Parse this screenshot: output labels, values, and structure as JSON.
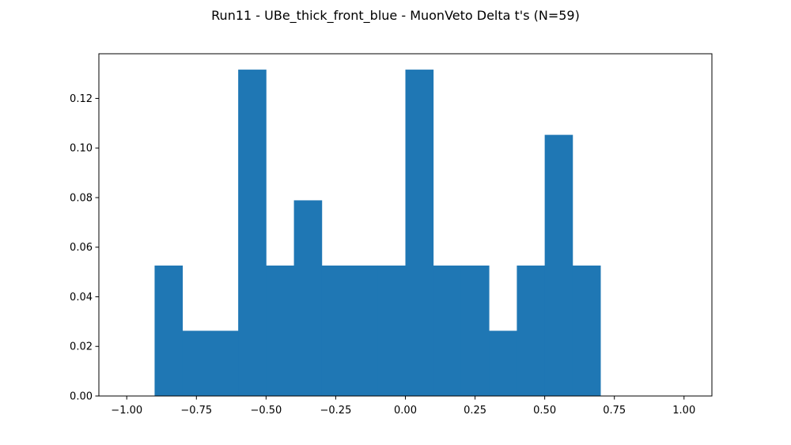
{
  "chart_data": {
    "type": "bar",
    "title": "Run11 - UBe_thick_front_blue - MuonVeto Delta t's (N=59)",
    "xlabel": "",
    "ylabel": "",
    "xlim": [
      -1.1,
      1.1
    ],
    "ylim": [
      0,
      0.138
    ],
    "xticks": [
      -1.0,
      -0.75,
      -0.5,
      -0.25,
      0.0,
      0.25,
      0.5,
      0.75,
      1.0
    ],
    "xtick_labels": [
      "−1.00",
      "−0.75",
      "−0.50",
      "−0.25",
      "0.00",
      "0.25",
      "0.50",
      "0.75",
      "1.00"
    ],
    "yticks": [
      0.0,
      0.02,
      0.04,
      0.06,
      0.08,
      0.1,
      0.12
    ],
    "ytick_labels": [
      "0.00",
      "0.02",
      "0.04",
      "0.06",
      "0.08",
      "0.10",
      "0.12"
    ],
    "bins": [
      {
        "x0": -0.9,
        "x1": -0.8,
        "value": 0.0526
      },
      {
        "x0": -0.8,
        "x1": -0.7,
        "value": 0.0263
      },
      {
        "x0": -0.7,
        "x1": -0.6,
        "value": 0.0263
      },
      {
        "x0": -0.6,
        "x1": -0.5,
        "value": 0.1316
      },
      {
        "x0": -0.5,
        "x1": -0.4,
        "value": 0.0526
      },
      {
        "x0": -0.4,
        "x1": -0.3,
        "value": 0.0789
      },
      {
        "x0": -0.3,
        "x1": -0.2,
        "value": 0.0526
      },
      {
        "x0": -0.2,
        "x1": -0.1,
        "value": 0.0526
      },
      {
        "x0": -0.1,
        "x1": 0.0,
        "value": 0.0526
      },
      {
        "x0": 0.0,
        "x1": 0.1,
        "value": 0.1316
      },
      {
        "x0": 0.1,
        "x1": 0.2,
        "value": 0.0526
      },
      {
        "x0": 0.2,
        "x1": 0.3,
        "value": 0.0526
      },
      {
        "x0": 0.3,
        "x1": 0.4,
        "value": 0.0263
      },
      {
        "x0": 0.4,
        "x1": 0.5,
        "value": 0.0526
      },
      {
        "x0": 0.5,
        "x1": 0.6,
        "value": 0.1053
      },
      {
        "x0": 0.6,
        "x1": 0.7,
        "value": 0.0526
      }
    ],
    "bar_color": "#1f77b4",
    "grid": false,
    "legend": null
  }
}
